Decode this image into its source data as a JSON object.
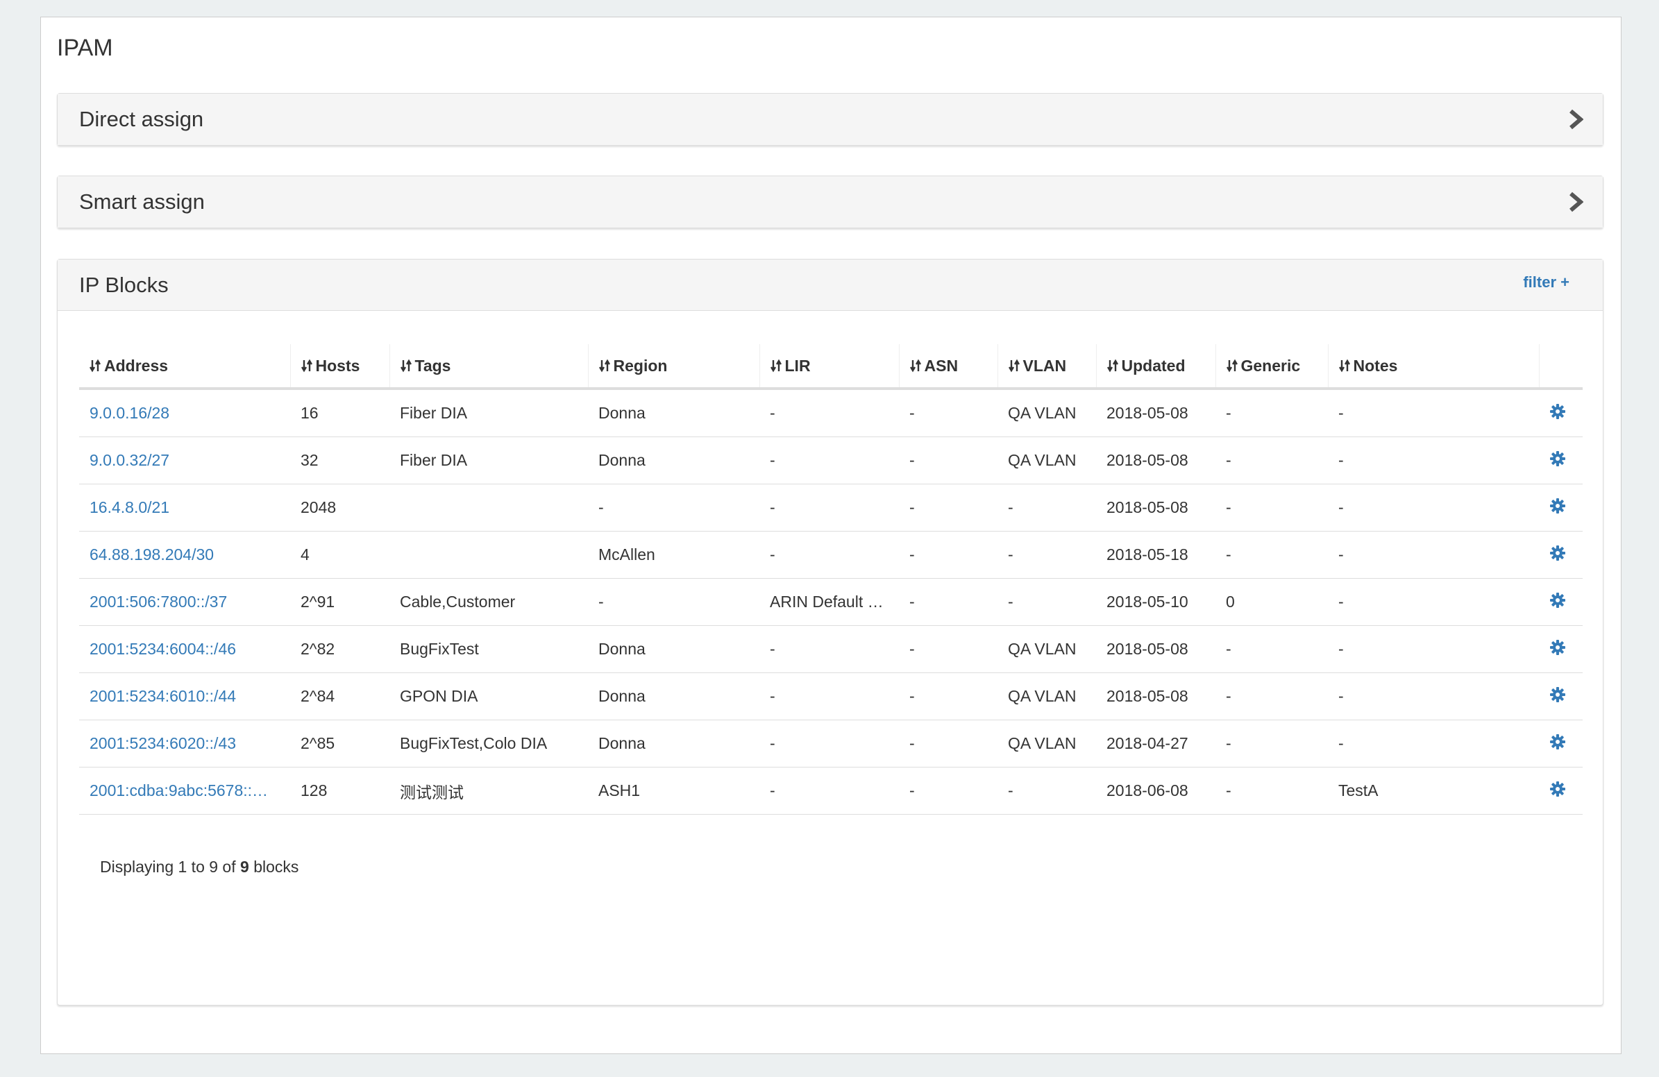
{
  "header": {
    "title": "IPAM"
  },
  "panels": [
    {
      "title": "Direct assign"
    },
    {
      "title": "Smart assign"
    }
  ],
  "ip_blocks": {
    "title": "IP Blocks",
    "filter": "filter +",
    "table": {
      "columns": [
        "Address",
        "Hosts",
        "Tags",
        "Region",
        "LIR",
        "ASN",
        "VLAN",
        "Updated",
        "Generic",
        "Notes"
      ],
      "rows": [
        [
          "9.0.0.16/28",
          "16",
          "Fiber DIA",
          "Donna",
          "-",
          "-",
          "QA VLAN",
          "2018-05-08",
          "-",
          "-"
        ],
        [
          "9.0.0.32/27",
          "32",
          "Fiber DIA",
          "Donna",
          "-",
          "-",
          "QA VLAN",
          "2018-05-08",
          "-",
          "-"
        ],
        [
          "16.4.8.0/21",
          "2048",
          null,
          "-",
          "-",
          "-",
          "-",
          "2018-05-08",
          "-",
          "-"
        ],
        [
          "64.88.198.204/30",
          "4",
          null,
          "McAllen",
          "-",
          "-",
          "-",
          "2018-05-18",
          "-",
          "-"
        ],
        [
          "2001:506:7800::/37",
          "2^91",
          "Cable,Customer",
          "-",
          "ARIN Default …",
          "-",
          "-",
          "2018-05-10",
          "0",
          "-"
        ],
        [
          "2001:5234:6004::/46",
          "2^82",
          "BugFixTest",
          "Donna",
          "-",
          "-",
          "QA VLAN",
          "2018-05-08",
          "-",
          "-"
        ],
        [
          "2001:5234:6010::/44",
          "2^84",
          "GPON DIA",
          "Donna",
          "-",
          "-",
          "QA VLAN",
          "2018-05-08",
          "-",
          "-"
        ],
        [
          "2001:5234:6020::/43",
          "2^85",
          "BugFixTest,Colo DIA",
          "Donna",
          "-",
          "-",
          "QA VLAN",
          "2018-04-27",
          "-",
          "-"
        ],
        [
          "2001:cdba:9abc:5678::…",
          "128",
          "测试测试",
          "ASH1",
          "-",
          "-",
          "-",
          "2018-06-08",
          "-",
          "TestA"
        ]
      ]
    },
    "footer": {
      "prefix": "Displaying 1 to 9 of",
      "total": "9",
      "suffix": "blocks"
    }
  }
}
